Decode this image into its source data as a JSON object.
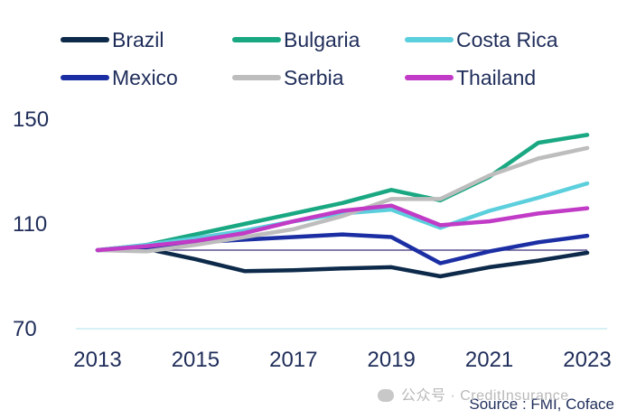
{
  "chart_data": {
    "type": "line",
    "title": "",
    "xlabel": "",
    "ylabel": "",
    "x": [
      2013,
      2014,
      2015,
      2016,
      2017,
      2018,
      2019,
      2020,
      2021,
      2022,
      2023
    ],
    "xticks": [
      "2013",
      "2015",
      "2017",
      "2019",
      "2021",
      "2023"
    ],
    "yticks": [
      "150",
      "110",
      "70"
    ],
    "ylim": [
      70,
      150
    ],
    "xlim": [
      2013,
      2023
    ],
    "grid": "horizontal baseline only",
    "legend_position": "top",
    "reference_line": {
      "y": 100,
      "color": "#3a2f7a"
    },
    "series": [
      {
        "name": "Brazil",
        "color": "#0d2a4a",
        "values": [
          100,
          100.5,
          96.5,
          92.0,
          92.3,
          93.0,
          93.5,
          90.0,
          93.5,
          96.0,
          99.0
        ]
      },
      {
        "name": "Bulgaria",
        "color": "#19a882",
        "values": [
          100,
          102.0,
          106.0,
          110.0,
          114.0,
          118.0,
          123.0,
          119.0,
          128.0,
          141.0,
          144.0
        ]
      },
      {
        "name": "Costa Rica",
        "color": "#5ccfdd",
        "values": [
          100,
          102.0,
          104.5,
          107.5,
          111.0,
          114.0,
          115.5,
          108.5,
          115.0,
          120.0,
          125.5
        ]
      },
      {
        "name": "Mexico",
        "color": "#1b2ea3",
        "values": [
          100,
          101.0,
          103.0,
          104.0,
          105.0,
          106.0,
          105.0,
          95.0,
          99.5,
          103.0,
          105.5
        ]
      },
      {
        "name": "Serbia",
        "color": "#bdbdbd",
        "values": [
          100,
          99.5,
          102.0,
          105.0,
          108.0,
          113.0,
          119.5,
          119.5,
          128.5,
          135.0,
          139.0
        ]
      },
      {
        "name": "Thailand",
        "color": "#c13bc6",
        "values": [
          100,
          101.5,
          103.5,
          106.5,
          111.0,
          115.0,
          117.0,
          109.5,
          111.0,
          114.0,
          116.0
        ]
      }
    ]
  },
  "source": "Source : FMI, Coface",
  "watermark": "公众号 · CreditInsurance"
}
